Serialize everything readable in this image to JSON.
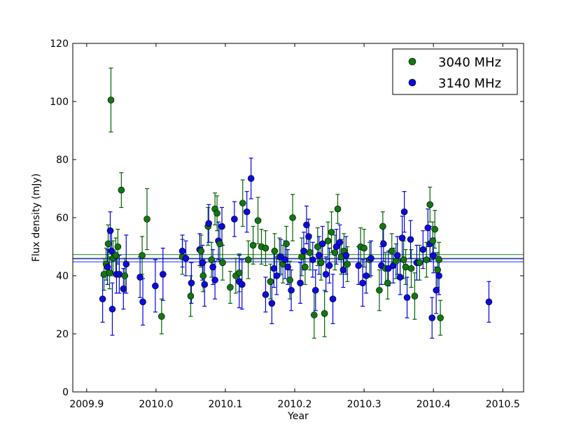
{
  "chart_data": {
    "type": "scatter",
    "title": "",
    "xlabel": "Year",
    "ylabel": "Flux density (mJy)",
    "xlim": [
      2009.88,
      2010.53
    ],
    "ylim": [
      0,
      120
    ],
    "xticks": [
      2009.9,
      2010.0,
      2010.1,
      2010.2,
      2010.3,
      2010.4,
      2010.5
    ],
    "xtick_labels": [
      "2009.9",
      "2010.0",
      "2010.1",
      "2010.2",
      "2010.3",
      "2010.4",
      "2010.5"
    ],
    "yticks": [
      0,
      20,
      40,
      60,
      80,
      100,
      120
    ],
    "ytick_labels": [
      "0",
      "20",
      "40",
      "60",
      "80",
      "100",
      "120"
    ],
    "grid": false,
    "legend_position": "top-right",
    "series": [
      {
        "name": "3040 MHz",
        "color": "#006400",
        "marker_color": "#117711",
        "mean_lines": [
          46.0,
          47.3
        ],
        "points": [
          [
            2009.925,
            40.5,
            5.5
          ],
          [
            2009.928,
            44.0,
            5.5
          ],
          [
            2009.931,
            51.0,
            6.5
          ],
          [
            2009.933,
            41.0,
            5.5
          ],
          [
            2009.935,
            100.5,
            11.0
          ],
          [
            2009.938,
            46.0,
            6.0
          ],
          [
            2009.942,
            47.0,
            6.0
          ],
          [
            2009.945,
            50.0,
            6.0
          ],
          [
            2009.95,
            69.5,
            6.0
          ],
          [
            2009.955,
            40.0,
            6.0
          ],
          [
            2009.98,
            47.0,
            6.5
          ],
          [
            2009.987,
            59.5,
            10.5
          ],
          [
            2010.008,
            26.0,
            6.0
          ],
          [
            2010.038,
            46.5,
            6.0
          ],
          [
            2010.05,
            33.0,
            7.0
          ],
          [
            2010.065,
            48.5,
            5.5
          ],
          [
            2010.068,
            40.0,
            5.5
          ],
          [
            2010.075,
            57.0,
            6.5
          ],
          [
            2010.08,
            45.5,
            6.0
          ],
          [
            2010.085,
            63.0,
            5.5
          ],
          [
            2010.088,
            61.5,
            6.0
          ],
          [
            2010.092,
            51.0,
            6.0
          ],
          [
            2010.096,
            44.5,
            6.0
          ],
          [
            2010.107,
            36.0,
            5.5
          ],
          [
            2010.115,
            40.0,
            6.0
          ],
          [
            2010.12,
            41.0,
            6.5
          ],
          [
            2010.125,
            65.0,
            8.0
          ],
          [
            2010.133,
            45.5,
            6.5
          ],
          [
            2010.14,
            50.5,
            6.5
          ],
          [
            2010.147,
            59.0,
            8.0
          ],
          [
            2010.152,
            50.0,
            6.0
          ],
          [
            2010.158,
            49.5,
            6.0
          ],
          [
            2010.165,
            38.0,
            6.0
          ],
          [
            2010.171,
            48.5,
            6.0
          ],
          [
            2010.178,
            46.5,
            6.5
          ],
          [
            2010.183,
            44.0,
            6.5
          ],
          [
            2010.188,
            51.0,
            6.0
          ],
          [
            2010.193,
            38.5,
            6.5
          ],
          [
            2010.197,
            60.0,
            8.0
          ],
          [
            2010.21,
            46.5,
            6.5
          ],
          [
            2010.215,
            43.0,
            6.0
          ],
          [
            2010.222,
            48.0,
            6.0
          ],
          [
            2010.228,
            26.5,
            8.0
          ],
          [
            2010.233,
            50.0,
            6.5
          ],
          [
            2010.238,
            44.5,
            6.0
          ],
          [
            2010.243,
            27.0,
            8.0
          ],
          [
            2010.248,
            52.0,
            6.5
          ],
          [
            2010.253,
            55.0,
            7.0
          ],
          [
            2010.258,
            48.0,
            6.0
          ],
          [
            2010.262,
            63.0,
            5.0
          ],
          [
            2010.267,
            46.5,
            6.0
          ],
          [
            2010.271,
            48.5,
            6.0
          ],
          [
            2010.276,
            44.0,
            6.0
          ],
          [
            2010.295,
            50.0,
            6.5
          ],
          [
            2010.3,
            49.5,
            6.5
          ],
          [
            2010.308,
            45.5,
            6.0
          ],
          [
            2010.322,
            35.0,
            7.0
          ],
          [
            2010.327,
            57.0,
            5.0
          ],
          [
            2010.331,
            42.5,
            5.5
          ],
          [
            2010.334,
            37.5,
            5.5
          ],
          [
            2010.34,
            48.5,
            6.0
          ],
          [
            2010.346,
            45.0,
            6.0
          ],
          [
            2010.357,
            45.5,
            6.5
          ],
          [
            2010.36,
            43.0,
            6.0
          ],
          [
            2010.368,
            42.5,
            6.5
          ],
          [
            2010.373,
            33.0,
            8.0
          ],
          [
            2010.38,
            44.5,
            6.0
          ],
          [
            2010.39,
            45.5,
            6.0
          ],
          [
            2010.395,
            64.5,
            6.0
          ],
          [
            2010.399,
            52.0,
            6.5
          ],
          [
            2010.402,
            56.0,
            6.5
          ],
          [
            2010.406,
            42.0,
            6.0
          ],
          [
            2010.41,
            25.5,
            6.0
          ],
          [
            2010.408,
            45.5,
            6.0
          ]
        ]
      },
      {
        "name": "3140 MHz",
        "color": "#0000ee",
        "marker_color": "#0b0bdd",
        "mean_lines": [
          44.8,
          45.8
        ],
        "points": [
          [
            2009.923,
            32.0,
            8.0
          ],
          [
            2009.93,
            43.0,
            6.0
          ],
          [
            2009.934,
            55.5,
            6.5
          ],
          [
            2009.936,
            48.5,
            7.0
          ],
          [
            2009.937,
            28.5,
            9.0
          ],
          [
            2009.943,
            40.5,
            6.5
          ],
          [
            2009.947,
            40.5,
            6.5
          ],
          [
            2009.953,
            35.5,
            7.0
          ],
          [
            2009.957,
            44.0,
            10.0
          ],
          [
            2009.977,
            39.5,
            7.0
          ],
          [
            2009.981,
            31.0,
            8.0
          ],
          [
            2009.999,
            36.5,
            9.0
          ],
          [
            2010.01,
            40.5,
            9.0
          ],
          [
            2010.038,
            48.5,
            5.5
          ],
          [
            2010.043,
            46.0,
            6.0
          ],
          [
            2010.051,
            37.5,
            7.0
          ],
          [
            2010.063,
            49.0,
            5.5
          ],
          [
            2010.067,
            44.5,
            6.0
          ],
          [
            2010.07,
            37.0,
            7.5
          ],
          [
            2010.076,
            58.0,
            6.5
          ],
          [
            2010.082,
            43.0,
            6.0
          ],
          [
            2010.085,
            38.5,
            6.5
          ],
          [
            2010.09,
            52.0,
            6.5
          ],
          [
            2010.095,
            57.0,
            6.5
          ],
          [
            2010.113,
            59.5,
            6.0
          ],
          [
            2010.12,
            38.0,
            9.0
          ],
          [
            2010.124,
            37.0,
            8.5
          ],
          [
            2010.131,
            62.0,
            7.0
          ],
          [
            2010.137,
            73.5,
            7.0
          ],
          [
            2010.158,
            33.5,
            6.0
          ],
          [
            2010.167,
            30.5,
            7.0
          ],
          [
            2010.17,
            42.5,
            6.5
          ],
          [
            2010.174,
            40.0,
            6.5
          ],
          [
            2010.18,
            46.5,
            6.0
          ],
          [
            2010.186,
            45.5,
            6.5
          ],
          [
            2010.19,
            43.0,
            6.0
          ],
          [
            2010.195,
            35.0,
            7.0
          ],
          [
            2010.208,
            37.5,
            7.0
          ],
          [
            2010.213,
            48.5,
            6.5
          ],
          [
            2010.217,
            57.5,
            6.5
          ],
          [
            2010.22,
            53.5,
            6.0
          ],
          [
            2010.226,
            45.5,
            6.0
          ],
          [
            2010.23,
            35.0,
            7.0
          ],
          [
            2010.235,
            47.0,
            6.5
          ],
          [
            2010.24,
            51.0,
            6.0
          ],
          [
            2010.245,
            40.5,
            6.0
          ],
          [
            2010.25,
            43.5,
            6.0
          ],
          [
            2010.255,
            32.0,
            8.5
          ],
          [
            2010.26,
            50.0,
            6.0
          ],
          [
            2010.265,
            51.5,
            6.0
          ],
          [
            2010.27,
            42.0,
            6.0
          ],
          [
            2010.274,
            47.0,
            6.5
          ],
          [
            2010.292,
            43.5,
            6.5
          ],
          [
            2010.298,
            37.5,
            8.0
          ],
          [
            2010.303,
            40.0,
            6.0
          ],
          [
            2010.31,
            46.0,
            6.0
          ],
          [
            2010.325,
            43.5,
            6.5
          ],
          [
            2010.328,
            51.0,
            6.0
          ],
          [
            2010.335,
            42.5,
            6.0
          ],
          [
            2010.342,
            43.5,
            6.0
          ],
          [
            2010.348,
            47.0,
            6.5
          ],
          [
            2010.352,
            39.5,
            6.0
          ],
          [
            2010.355,
            53.0,
            7.5
          ],
          [
            2010.358,
            62.0,
            7.0
          ],
          [
            2010.362,
            32.5,
            7.0
          ],
          [
            2010.367,
            52.5,
            6.5
          ],
          [
            2010.376,
            44.5,
            6.0
          ],
          [
            2010.385,
            49.0,
            6.5
          ],
          [
            2010.392,
            56.5,
            6.5
          ],
          [
            2010.395,
            51.0,
            6.0
          ],
          [
            2010.398,
            25.5,
            7.0
          ],
          [
            2010.4,
            47.0,
            6.0
          ],
          [
            2010.404,
            35.0,
            8.0
          ],
          [
            2010.408,
            40.0,
            6.5
          ],
          [
            2010.48,
            31.0,
            7.0
          ]
        ]
      }
    ]
  }
}
